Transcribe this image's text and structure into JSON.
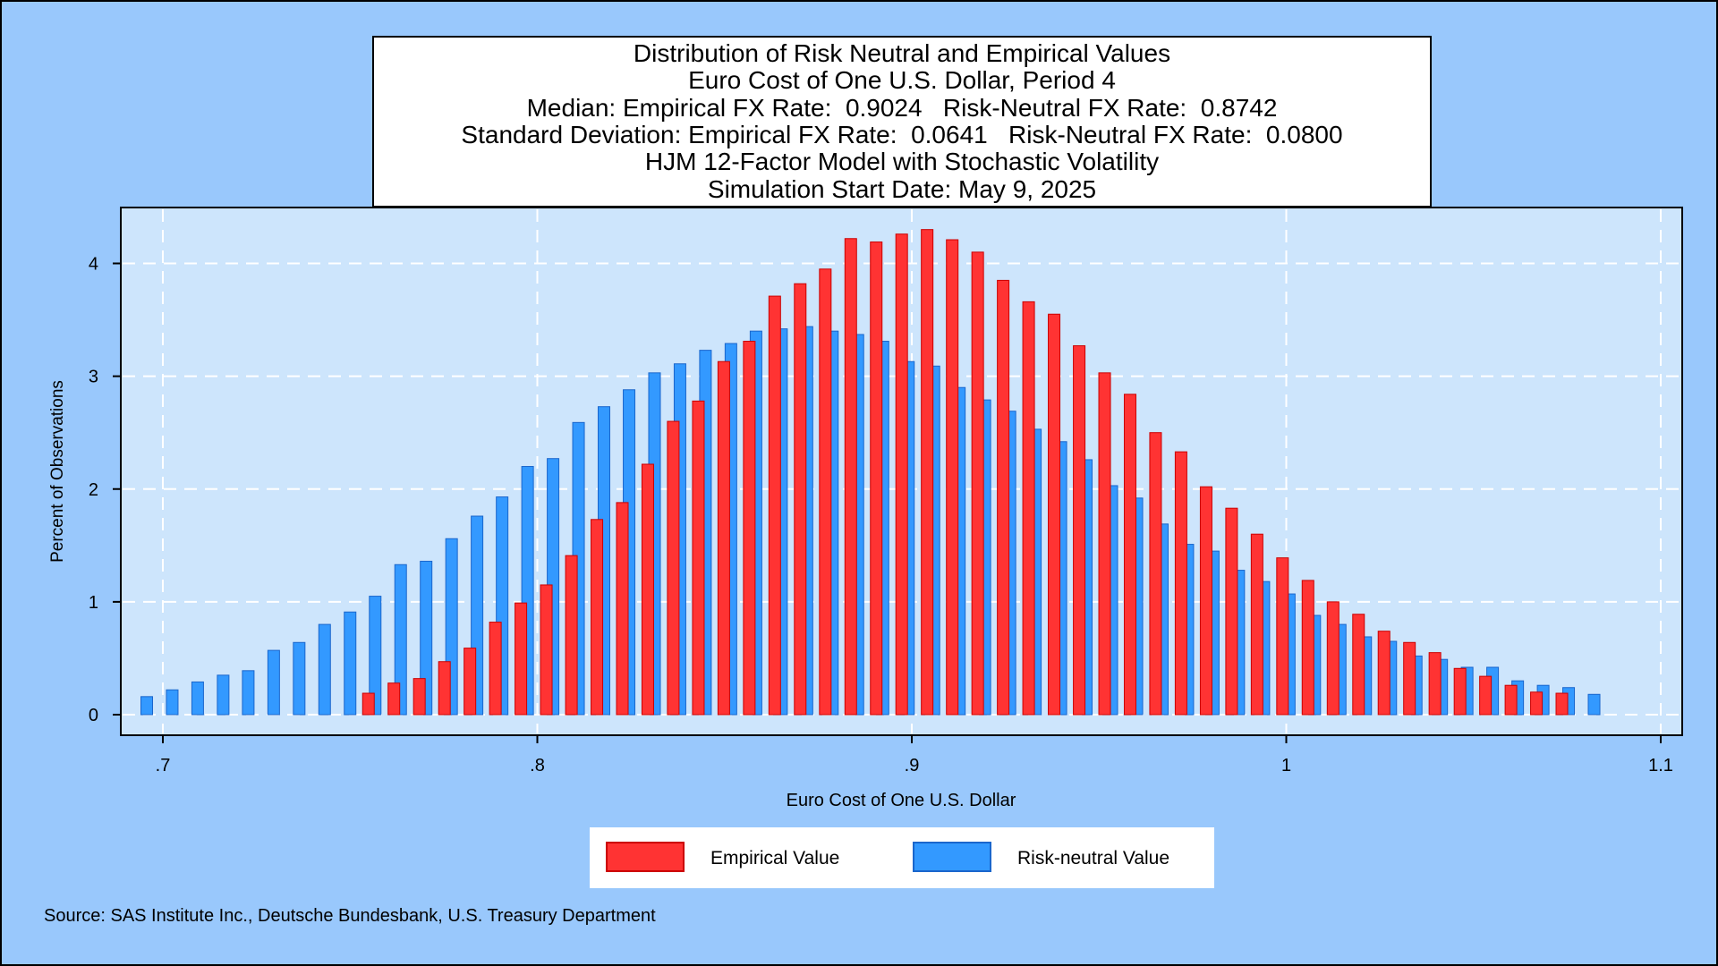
{
  "title_lines": [
    "Distribution of Risk Neutral and Empirical Values",
    "Euro Cost of One U.S. Dollar, Period 4",
    "Median: Empirical FX Rate:  0.9024   Risk-Neutral FX Rate:  0.8742",
    "Standard Deviation: Empirical FX Rate:  0.0641   Risk-Neutral FX Rate:  0.0800",
    "HJM 12-Factor Model with Stochastic Volatility",
    "Simulation Start Date: May 9, 2025"
  ],
  "source": "Source: SAS Institute Inc., Deutsche Bundesbank, U.S. Treasury Department",
  "legend": {
    "empirical_label": "Empirical Value",
    "risk_neutral_label": "Risk-neutral Value"
  },
  "colors": {
    "background": "#99c8fc",
    "plot_area": "#cde5fc",
    "empirical_fill": "#ff3333",
    "empirical_edge": "#cc0000",
    "risk_neutral_fill": "#3399ff",
    "risk_neutral_edge": "#1a66cc",
    "grid": "#ffffff"
  },
  "chart_data": {
    "type": "bar",
    "title": "Distribution of Risk Neutral and Empirical Values",
    "xlabel": "Euro Cost of One U.S. Dollar",
    "ylabel": "Percent of Observations",
    "xlim": [
      0.69,
      1.09
    ],
    "ylim": [
      0,
      4.4
    ],
    "x_ticks": [
      0.7,
      0.8,
      0.9,
      1.0,
      1.1
    ],
    "x_tick_labels": [
      ".7",
      ".8",
      ".9",
      "1",
      "1.1"
    ],
    "y_ticks": [
      0,
      1,
      2,
      3,
      4
    ],
    "y_tick_labels": [
      "0",
      "1",
      "2",
      "3",
      "4"
    ],
    "grid": true,
    "legend_position": "bottom",
    "series": [
      {
        "name": "Risk-neutral Value",
        "x": [
          0.6957,
          0.7025,
          0.7093,
          0.7161,
          0.7228,
          0.7296,
          0.7364,
          0.7432,
          0.75,
          0.7567,
          0.7635,
          0.7703,
          0.7771,
          0.7839,
          0.7906,
          0.7974,
          0.8042,
          0.811,
          0.8178,
          0.8245,
          0.8313,
          0.8381,
          0.8449,
          0.8517,
          0.8584,
          0.8652,
          0.872,
          0.8788,
          0.8856,
          0.8923,
          0.8991,
          0.9059,
          0.9127,
          0.9195,
          0.9262,
          0.933,
          0.9398,
          0.9466,
          0.9534,
          0.9601,
          0.9669,
          0.9737,
          0.9805,
          0.9873,
          0.994,
          1.0008,
          1.0076,
          1.0144,
          1.0212,
          1.0279,
          1.0347,
          1.0415,
          1.0483,
          1.0551,
          1.0618,
          1.0686,
          1.0754,
          1.0822
        ],
        "values": [
          0.16,
          0.22,
          0.29,
          0.35,
          0.39,
          0.57,
          0.64,
          0.8,
          0.91,
          1.05,
          1.33,
          1.36,
          1.56,
          1.76,
          1.93,
          2.2,
          2.27,
          2.59,
          2.73,
          2.88,
          3.03,
          3.11,
          3.23,
          3.29,
          3.4,
          3.42,
          3.44,
          3.4,
          3.37,
          3.31,
          3.13,
          3.09,
          2.9,
          2.79,
          2.69,
          2.53,
          2.42,
          2.26,
          2.03,
          1.92,
          1.69,
          1.51,
          1.45,
          1.28,
          1.18,
          1.07,
          0.88,
          0.8,
          0.69,
          0.65,
          0.52,
          0.49,
          0.42,
          0.42,
          0.3,
          0.26,
          0.24,
          0.18
        ]
      },
      {
        "name": "Empirical Value",
        "x": [
          0.7549,
          0.7617,
          0.7685,
          0.7752,
          0.782,
          0.7888,
          0.7956,
          0.8024,
          0.8091,
          0.8159,
          0.8227,
          0.8295,
          0.8363,
          0.843,
          0.8498,
          0.8566,
          0.8634,
          0.8702,
          0.8769,
          0.8837,
          0.8905,
          0.8973,
          0.9041,
          0.9108,
          0.9176,
          0.9244,
          0.9312,
          0.938,
          0.9447,
          0.9515,
          0.9583,
          0.9651,
          0.9719,
          0.9786,
          0.9854,
          0.9922,
          0.999,
          1.0058,
          1.0125,
          1.0193,
          1.0261,
          1.0329,
          1.0397,
          1.0464,
          1.0532,
          1.06,
          1.0668,
          1.0736
        ],
        "values": [
          0.19,
          0.28,
          0.32,
          0.47,
          0.59,
          0.82,
          0.99,
          1.15,
          1.41,
          1.73,
          1.88,
          2.22,
          2.6,
          2.78,
          3.13,
          3.31,
          3.71,
          3.82,
          3.95,
          4.22,
          4.19,
          4.26,
          4.3,
          4.21,
          4.1,
          3.85,
          3.66,
          3.55,
          3.27,
          3.03,
          2.84,
          2.5,
          2.33,
          2.02,
          1.83,
          1.6,
          1.39,
          1.19,
          1.0,
          0.89,
          0.74,
          0.64,
          0.55,
          0.41,
          0.34,
          0.26,
          0.2,
          0.19
        ]
      }
    ]
  }
}
